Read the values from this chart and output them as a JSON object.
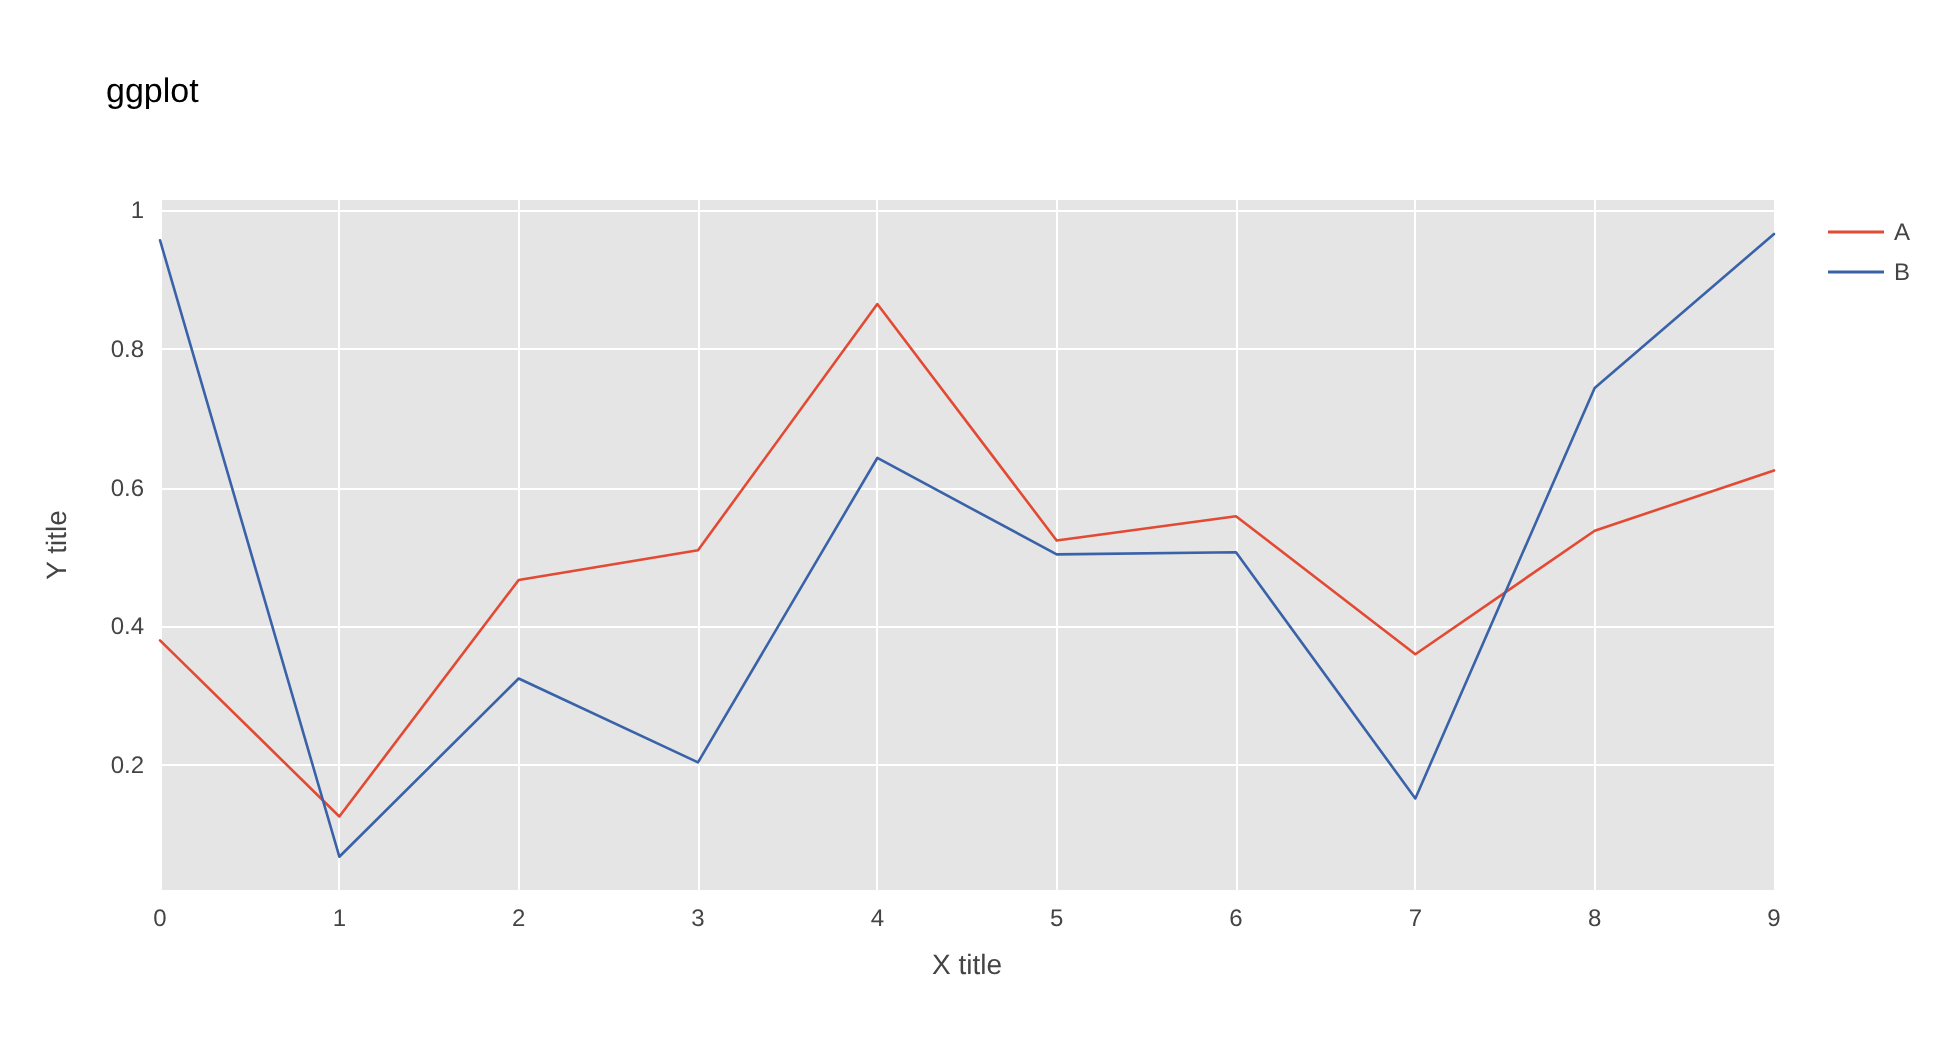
{
  "chart_data": {
    "type": "line",
    "title": "ggplot",
    "xlabel": "X title",
    "ylabel": "Y title",
    "x": [
      0,
      1,
      2,
      3,
      4,
      5,
      6,
      7,
      8,
      9
    ],
    "series": [
      {
        "name": "A",
        "color": "#e24a33",
        "values": [
          0.38,
          0.126,
          0.467,
          0.51,
          0.865,
          0.524,
          0.559,
          0.36,
          0.538,
          0.625
        ]
      },
      {
        "name": "B",
        "color": "#3a62a8",
        "values": [
          0.957,
          0.068,
          0.325,
          0.204,
          0.643,
          0.504,
          0.507,
          0.152,
          0.744,
          0.966
        ]
      }
    ],
    "xlim": [
      0,
      9
    ],
    "xticks": [
      0,
      1,
      2,
      3,
      4,
      5,
      6,
      7,
      8,
      9
    ],
    "ylim": [
      0.02,
      1.015
    ],
    "yticks": [
      0.2,
      0.4,
      0.6,
      0.8,
      1
    ],
    "grid": true,
    "legend": "top right",
    "marker": "none",
    "line_style": "solid"
  }
}
